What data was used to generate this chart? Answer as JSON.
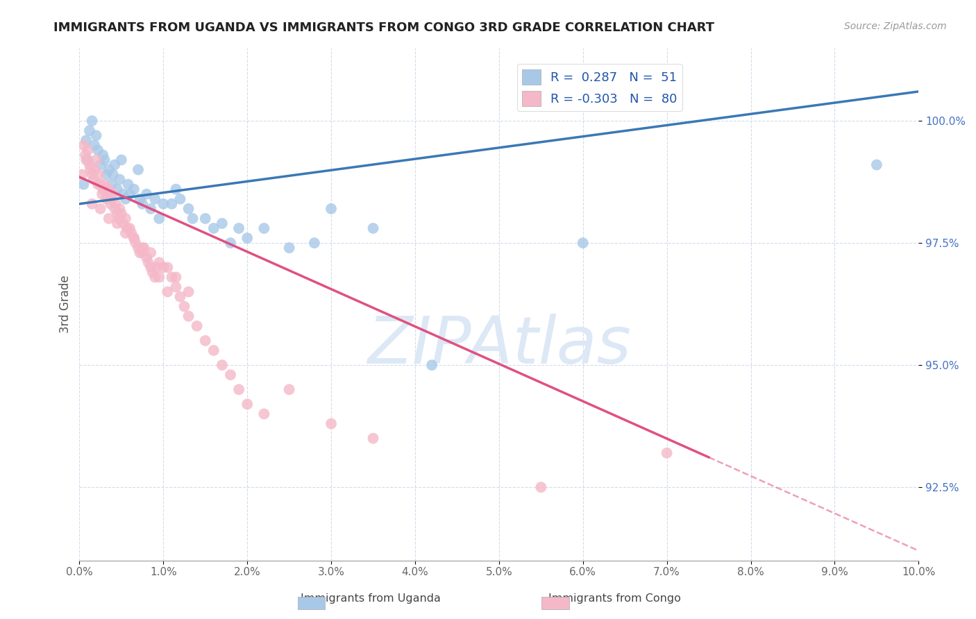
{
  "title": "IMMIGRANTS FROM UGANDA VS IMMIGRANTS FROM CONGO 3RD GRADE CORRELATION CHART",
  "source": "Source: ZipAtlas.com",
  "ylabel": "3rd Grade",
  "xmin": 0.0,
  "xmax": 10.0,
  "ymin": 91.0,
  "ymax": 101.5,
  "yticks": [
    92.5,
    95.0,
    97.5,
    100.0
  ],
  "ytick_labels": [
    "92.5%",
    "95.0%",
    "97.5%",
    "100.0%"
  ],
  "uganda_color": "#a8c8e8",
  "congo_color": "#f4b8c8",
  "uganda_line_color": "#3a78b5",
  "congo_line_color": "#e05080",
  "watermark": "ZIPAtlas",
  "watermark_color": "#dce8f5",
  "uganda_line_x0": 0.0,
  "uganda_line_y0": 98.3,
  "uganda_line_x1": 10.0,
  "uganda_line_y1": 100.6,
  "congo_line_x0": 0.0,
  "congo_line_y0": 98.85,
  "congo_line_x1": 10.0,
  "congo_line_y1": 91.2,
  "congo_solid_end": 7.5,
  "uganda_x": [
    0.05,
    0.08,
    0.1,
    0.12,
    0.15,
    0.18,
    0.2,
    0.22,
    0.25,
    0.28,
    0.3,
    0.32,
    0.35,
    0.38,
    0.4,
    0.42,
    0.45,
    0.48,
    0.5,
    0.52,
    0.55,
    0.58,
    0.6,
    0.65,
    0.7,
    0.72,
    0.75,
    0.8,
    0.85,
    0.9,
    0.95,
    1.0,
    1.1,
    1.15,
    1.2,
    1.3,
    1.35,
    1.5,
    1.6,
    1.7,
    1.8,
    1.9,
    2.0,
    2.2,
    2.5,
    2.8,
    3.0,
    3.5,
    4.2,
    6.0,
    9.5
  ],
  "uganda_y": [
    98.7,
    99.6,
    99.2,
    99.8,
    100.0,
    99.5,
    99.7,
    99.4,
    99.1,
    99.3,
    99.2,
    98.9,
    99.0,
    98.7,
    98.9,
    99.1,
    98.6,
    98.8,
    99.2,
    98.5,
    98.4,
    98.7,
    98.5,
    98.6,
    99.0,
    98.4,
    98.3,
    98.5,
    98.2,
    98.4,
    98.0,
    98.3,
    98.3,
    98.6,
    98.4,
    98.2,
    98.0,
    98.0,
    97.8,
    97.9,
    97.5,
    97.8,
    97.6,
    97.8,
    97.4,
    97.5,
    98.2,
    97.8,
    95.0,
    97.5,
    99.1
  ],
  "congo_x": [
    0.03,
    0.05,
    0.07,
    0.08,
    0.1,
    0.12,
    0.13,
    0.15,
    0.17,
    0.18,
    0.2,
    0.22,
    0.23,
    0.25,
    0.27,
    0.28,
    0.3,
    0.32,
    0.33,
    0.35,
    0.37,
    0.38,
    0.4,
    0.42,
    0.43,
    0.45,
    0.47,
    0.48,
    0.5,
    0.52,
    0.55,
    0.57,
    0.6,
    0.62,
    0.65,
    0.67,
    0.7,
    0.72,
    0.75,
    0.77,
    0.8,
    0.82,
    0.85,
    0.87,
    0.9,
    0.92,
    0.95,
    1.0,
    1.05,
    1.1,
    1.15,
    1.2,
    1.25,
    1.3,
    1.4,
    1.5,
    1.6,
    1.7,
    1.8,
    1.9,
    2.0,
    2.2,
    2.5,
    3.0,
    3.5,
    5.5,
    7.0,
    0.15,
    0.25,
    0.35,
    0.45,
    0.55,
    0.65,
    0.75,
    0.85,
    0.95,
    1.05,
    1.15,
    1.3
  ],
  "congo_y": [
    98.9,
    99.5,
    99.3,
    99.2,
    99.4,
    99.1,
    99.0,
    98.9,
    98.8,
    99.0,
    99.2,
    98.7,
    98.9,
    98.7,
    98.5,
    98.6,
    98.7,
    98.4,
    98.5,
    98.6,
    98.3,
    98.4,
    98.5,
    98.2,
    98.3,
    98.1,
    98.0,
    98.2,
    98.1,
    97.9,
    98.0,
    97.8,
    97.8,
    97.7,
    97.6,
    97.5,
    97.4,
    97.3,
    97.3,
    97.4,
    97.2,
    97.1,
    97.0,
    96.9,
    96.8,
    97.0,
    96.8,
    97.0,
    96.5,
    96.8,
    96.6,
    96.4,
    96.2,
    96.0,
    95.8,
    95.5,
    95.3,
    95.0,
    94.8,
    94.5,
    94.2,
    94.0,
    94.5,
    93.8,
    93.5,
    92.5,
    93.2,
    98.3,
    98.2,
    98.0,
    97.9,
    97.7,
    97.6,
    97.4,
    97.3,
    97.1,
    97.0,
    96.8,
    96.5
  ]
}
